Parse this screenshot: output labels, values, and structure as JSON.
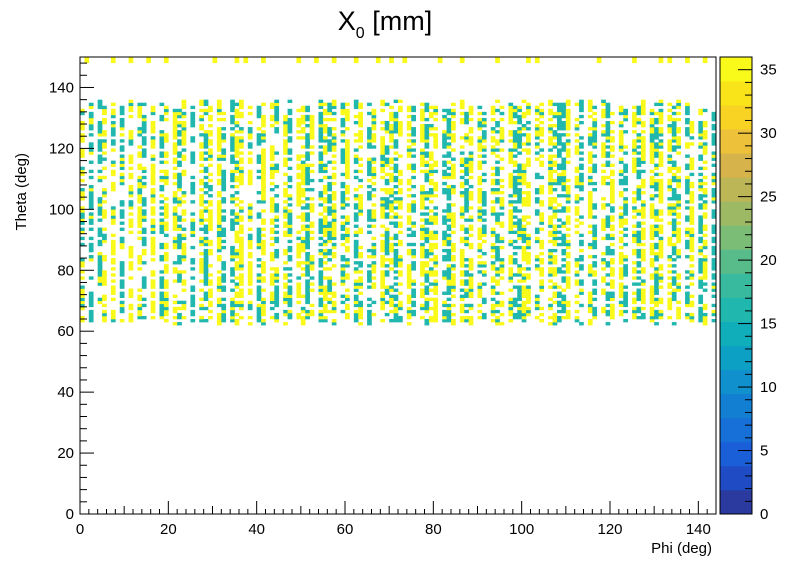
{
  "chart_data": {
    "type": "heatmap",
    "title": "X",
    "title_subscript": "0",
    "title_suffix": " [mm]",
    "xlabel": "Phi (deg)",
    "ylabel": "Theta (deg)",
    "xlim": [
      0,
      144
    ],
    "ylim": [
      0,
      150
    ],
    "zlim": [
      0,
      36
    ],
    "bin_width": [
      1,
      1
    ],
    "x_ticks": [
      "0",
      "20",
      "40",
      "60",
      "80",
      "100",
      "120",
      "140"
    ],
    "y_ticks": [
      "0",
      "20",
      "40",
      "60",
      "80",
      "100",
      "120",
      "140"
    ],
    "z_ticks": [
      "0",
      "5",
      "10",
      "15",
      "20",
      "25",
      "30",
      "35"
    ],
    "grid": false,
    "legend": "colorbar-right",
    "colormap": [
      "#2a3a9e",
      "#1f4bc4",
      "#1a5fd8",
      "#1670d8",
      "#137fd3",
      "#1090cc",
      "#0ca0c4",
      "#10aebb",
      "#20b7ae",
      "#38ba9e",
      "#58bc8a",
      "#7bbc76",
      "#9db964",
      "#bcb656",
      "#d7b44b",
      "#eec13b",
      "#f9d324",
      "#f9e41a",
      "#f9f91a"
    ],
    "band": {
      "theta_range": [
        62,
        136
      ],
      "values": [
        16,
        36
      ]
    },
    "top_row": {
      "theta_range": [
        148,
        150
      ],
      "value": 36
    },
    "hot_columns": [
      0,
      5,
      7,
      11,
      13,
      16,
      19,
      21,
      23,
      27,
      29,
      31,
      35,
      36,
      38,
      41,
      43,
      46,
      49,
      50,
      52,
      55,
      57,
      60,
      63,
      66,
      68,
      70,
      72,
      74,
      77,
      79,
      80,
      84,
      86,
      88,
      90,
      93,
      95,
      97,
      100,
      101,
      104,
      106,
      107,
      110,
      112,
      115,
      118,
      120,
      122,
      125,
      127,
      129,
      131,
      133,
      135,
      138,
      141
    ],
    "cold_columns": [
      2,
      4,
      9,
      14,
      18,
      22,
      25,
      28,
      32,
      34,
      40,
      44,
      47,
      51,
      54,
      56,
      59,
      62,
      65,
      69,
      71,
      75,
      78,
      82,
      83,
      87,
      91,
      94,
      98,
      99,
      103,
      108,
      109,
      113,
      116,
      119,
      123,
      126,
      130,
      134,
      137,
      140,
      143
    ],
    "top_row_columns": [
      1,
      7,
      11,
      15,
      19,
      30,
      35,
      37,
      41,
      49,
      53,
      57,
      62,
      67,
      70,
      73,
      81,
      86,
      94,
      101,
      103,
      117,
      125,
      131,
      133,
      137,
      141
    ]
  }
}
